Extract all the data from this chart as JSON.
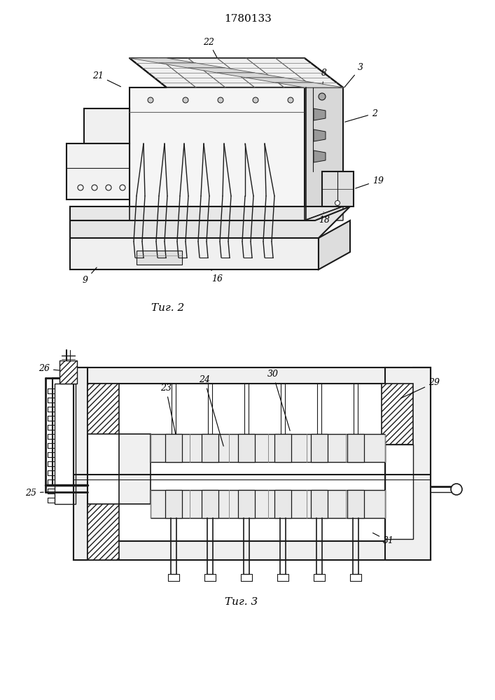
{
  "title": "1780133",
  "fig2_caption": "Τиг. 2",
  "fig3_caption": "Τиг. 3",
  "bg_color": "#ffffff",
  "lc": "#1a1a1a",
  "fig_width": 7.07,
  "fig_height": 10.0,
  "dpi": 100
}
